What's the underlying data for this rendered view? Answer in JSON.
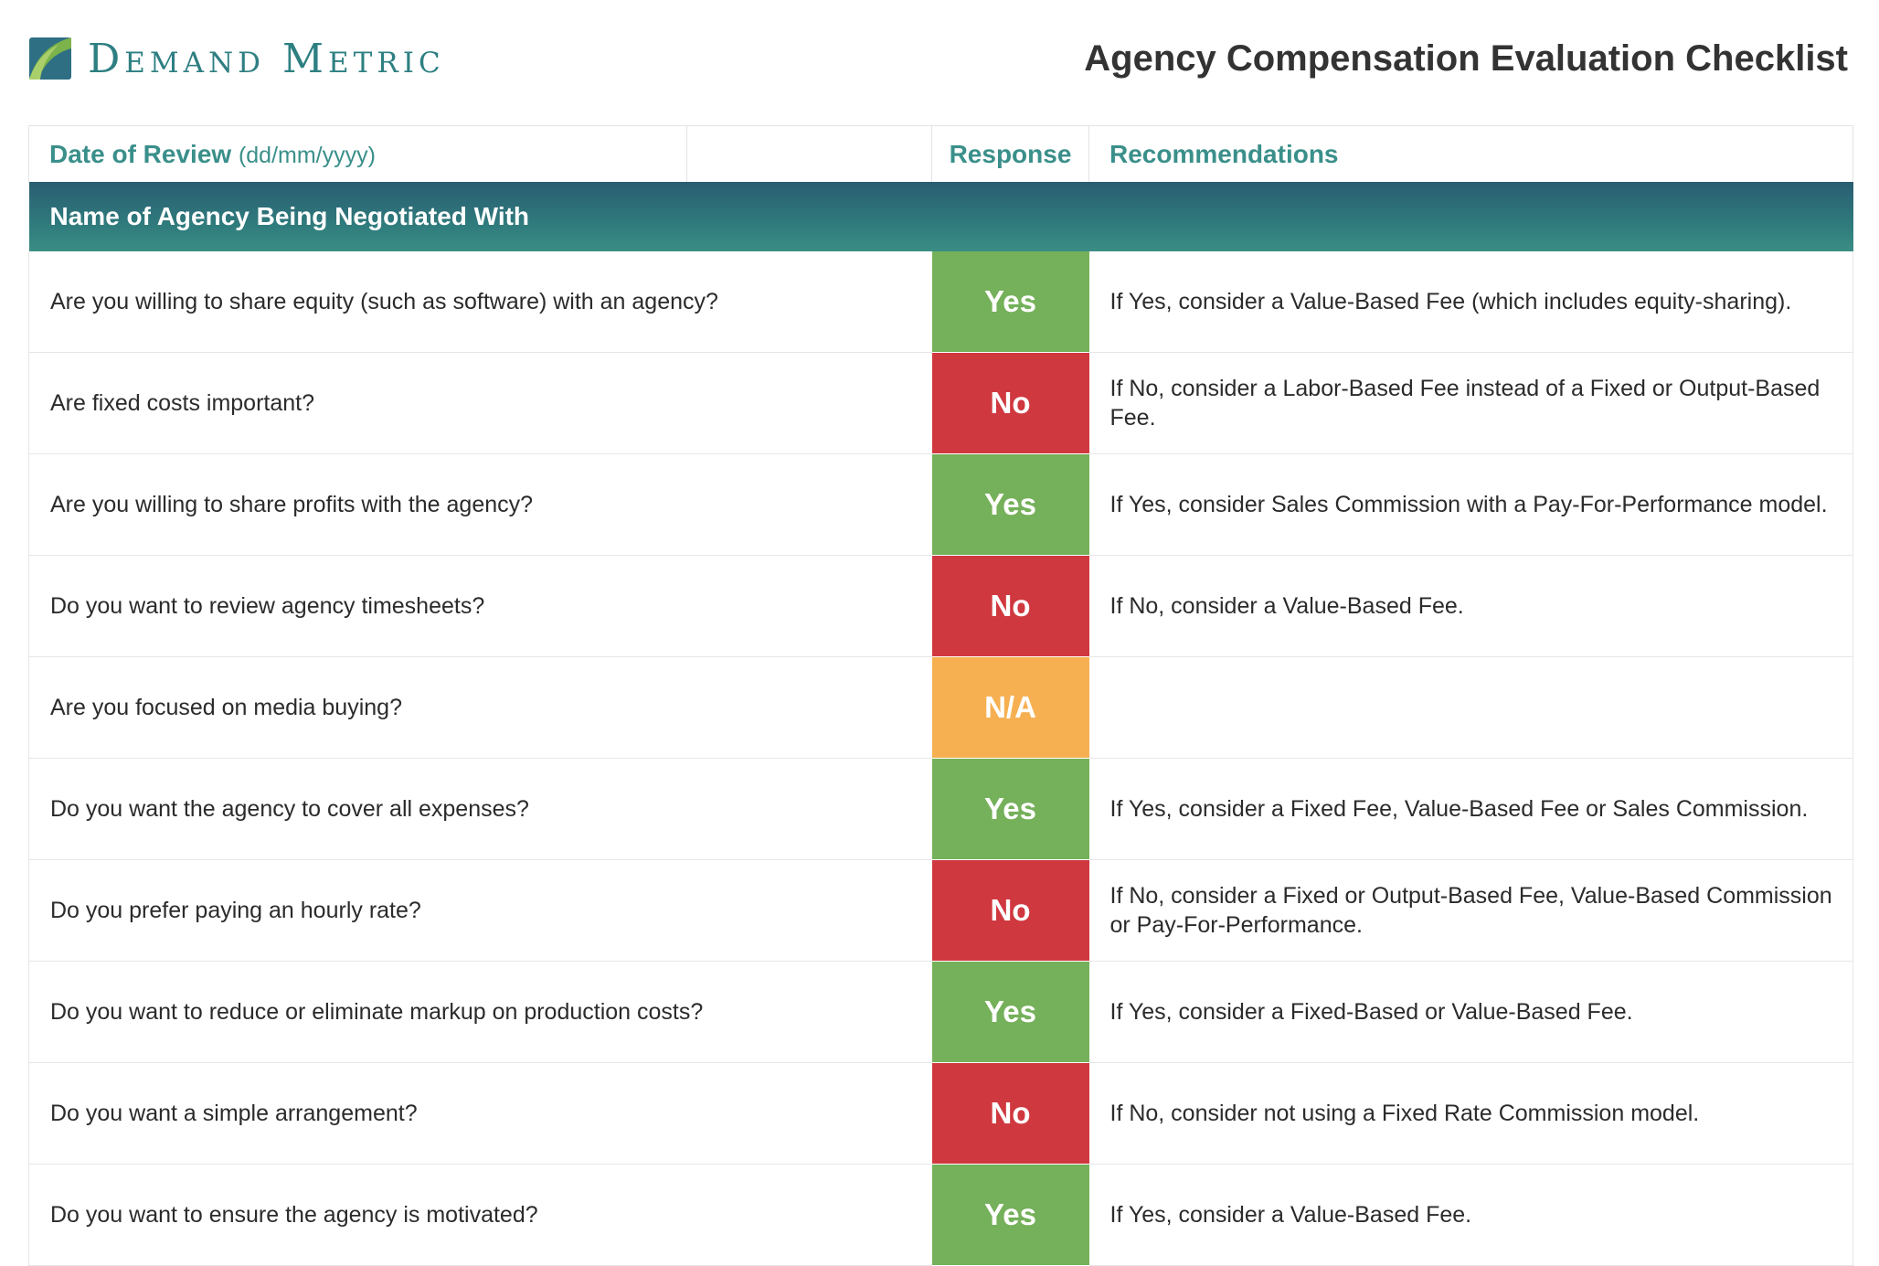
{
  "header": {
    "brand": "Demand Metric",
    "logo_icon": "demand-metric-leaf-logo",
    "title": "Agency Compensation Evaluation Checklist"
  },
  "table": {
    "date_label": "Date of Review",
    "date_format": "(dd/mm/yyyy)",
    "date_value": "",
    "response_header": "Response",
    "recommendations_header": "Recommendations",
    "section_title": "Name of Agency Being Negotiated With",
    "rows": [
      {
        "question": "Are you willing to share equity (such as software) with an agency?",
        "response": "Yes",
        "recommendation": "If Yes, consider a Value-Based Fee (which includes equity-sharing)."
      },
      {
        "question": "Are fixed costs important?",
        "response": "No",
        "recommendation": " If No, consider a Labor-Based Fee instead of a Fixed or Output-Based Fee."
      },
      {
        "question": "Are you willing to share profits with the agency?",
        "response": "Yes",
        "recommendation": "If Yes, consider Sales Commission with a Pay-For-Performance model."
      },
      {
        "question": "Do you want to review agency timesheets?",
        "response": "No",
        "recommendation": "If No, consider a Value-Based Fee."
      },
      {
        "question": "Are you focused on media buying?",
        "response": "N/A",
        "recommendation": ""
      },
      {
        "question": "Do you want the agency to cover all expenses?",
        "response": "Yes",
        "recommendation": "If Yes, consider a Fixed Fee, Value-Based Fee or Sales Commission."
      },
      {
        "question": "Do you prefer paying an hourly rate?",
        "response": "No",
        "recommendation": "If No, consider a Fixed or Output-Based Fee, Value-Based Commission or Pay-For-Performance."
      },
      {
        "question": "Do you want to reduce or eliminate markup on production costs?",
        "response": "Yes",
        "recommendation": "If Yes, consider a Fixed-Based or Value-Based Fee."
      },
      {
        "question": "Do you want a simple arrangement?",
        "response": "No",
        "recommendation": "If No, consider not using a Fixed Rate Commission model."
      },
      {
        "question": "Do you want to ensure the agency is motivated?",
        "response": "Yes",
        "recommendation": "If Yes, consider a Value-Based Fee."
      }
    ]
  },
  "colors": {
    "accent_teal": "#3a8f8a",
    "yes_green": "#75b05a",
    "no_red": "#d0383f",
    "na_orange": "#f6b052",
    "section_bar": "#2f7a7c"
  }
}
